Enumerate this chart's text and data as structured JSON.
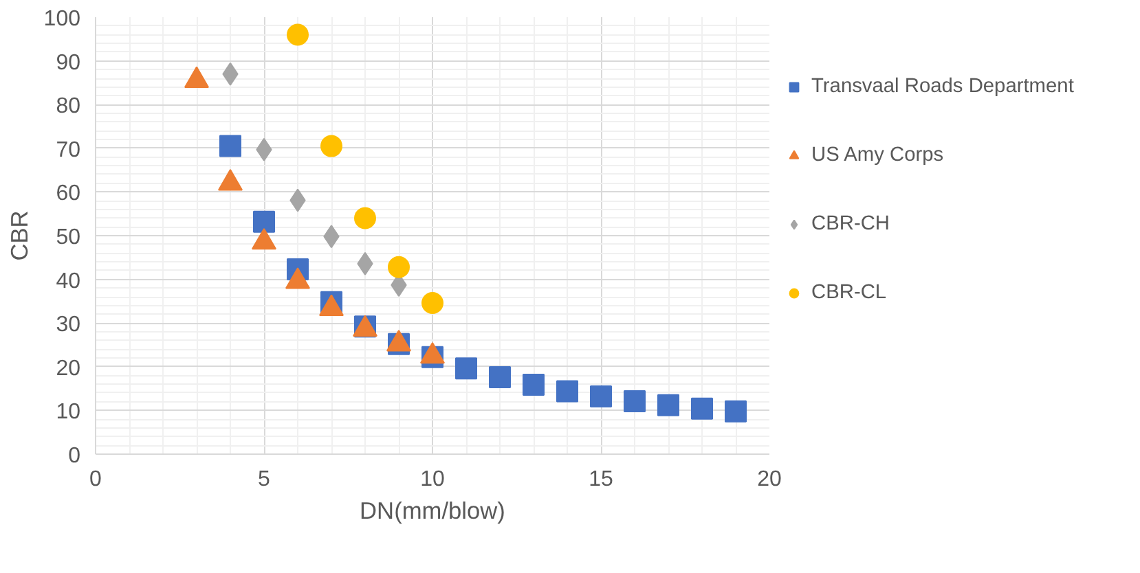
{
  "chart_data": {
    "type": "scatter",
    "xlabel": "DN(mm/blow)",
    "ylabel": "CBR",
    "xlim": [
      0,
      20
    ],
    "xticks": [
      0,
      5,
      10,
      15,
      20
    ],
    "ylim": [
      0,
      100
    ],
    "yticks": [
      0,
      10,
      20,
      30,
      40,
      50,
      60,
      70,
      80,
      90,
      100
    ],
    "grid": true,
    "legend": "right",
    "series": [
      {
        "name": "Transvaal Roads Department",
        "color": "#4472c4",
        "marker": "square",
        "x": [
          4,
          5,
          6,
          7,
          8,
          9,
          10,
          11,
          12,
          13,
          14,
          15,
          16,
          17,
          18,
          19
        ],
        "values": [
          70.5,
          53.2,
          42.3,
          34.8,
          29.2,
          25.2,
          22.2,
          19.6,
          17.6,
          15.9,
          14.4,
          13.2,
          12.1,
          11.2,
          10.4,
          9.8
        ]
      },
      {
        "name": "US Amy Corps",
        "color": "#ed7d31",
        "marker": "triangle",
        "x": [
          3,
          4,
          5,
          6,
          7,
          8,
          9,
          10
        ],
        "values": [
          85.5,
          62,
          48.5,
          39.5,
          33.3,
          28.6,
          25.2,
          22.4
        ]
      },
      {
        "name": "CBR-CH",
        "color": "#a5a5a5",
        "marker": "diamond",
        "x": [
          4,
          5,
          6,
          7,
          8,
          9
        ],
        "values": [
          87,
          69.7,
          58.1,
          49.8,
          43.6,
          38.7
        ]
      },
      {
        "name": "CBR-CL",
        "color": "#ffc000",
        "marker": "circle",
        "x": [
          6,
          7,
          8,
          9,
          10
        ],
        "values": [
          96,
          70.5,
          54,
          42.8,
          34.6
        ]
      }
    ]
  }
}
